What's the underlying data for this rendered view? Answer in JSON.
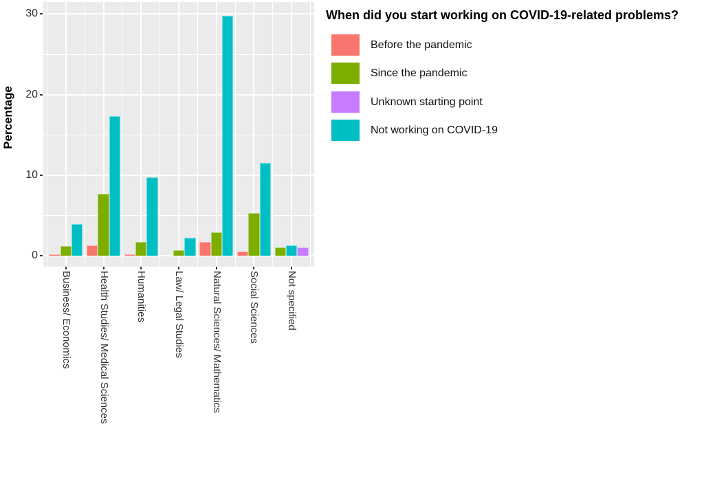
{
  "chart_data": {
    "type": "bar",
    "layout": "grouped-dodged vertical bars, grey panel with white gridlines, legend at right",
    "ylabel": "Percentage",
    "xlabel": "",
    "ylim": [
      0,
      30
    ],
    "yticks": [
      0,
      10,
      20,
      30
    ],
    "grid": "major horizontal at 0/10/20/30, minor at 5/15/25, vertical at category centers",
    "panel_bg": "#EBEBEB",
    "gridline_color": "#FFFFFF",
    "legend_title": "When did you start working on COVID-19-related problems?",
    "legend_position": "right",
    "categories": [
      "Business/ Economics",
      "Health Studies/ Medical Sciences",
      "Humanities",
      "Law/ Legal Studies",
      "Natural Sciences/ Mathematics",
      "Social Sciences",
      "Not specified"
    ],
    "series": [
      {
        "id": "before",
        "label": "Before the pandemic",
        "color": "#F8766D",
        "values": [
          0.2,
          1.3,
          0.2,
          0,
          1.7,
          0.5,
          0
        ]
      },
      {
        "id": "since",
        "label": "Since the pandemic",
        "color": "#7CAE00",
        "values": [
          1.2,
          7.7,
          1.7,
          0.7,
          2.9,
          5.3,
          1.0
        ]
      },
      {
        "id": "unknown",
        "label": "Unknown starting point",
        "color": "#C77CFF",
        "values": [
          0,
          0,
          0,
          0,
          0,
          0,
          1.0
        ]
      },
      {
        "id": "notworking",
        "label": "Not working on COVID-19",
        "color": "#00BFC4",
        "values": [
          3.9,
          17.3,
          9.7,
          2.2,
          29.8,
          11.5,
          1.3
        ]
      }
    ],
    "bar_order": [
      [
        "before",
        "since",
        "notworking"
      ],
      [
        "before",
        "since",
        "notworking"
      ],
      [
        "before",
        "since",
        "notworking"
      ],
      [
        "before",
        "since",
        "notworking"
      ],
      [
        "before",
        "since",
        "notworking"
      ],
      [
        "before",
        "since",
        "notworking"
      ],
      [
        "since",
        "notworking",
        "unknown"
      ]
    ]
  }
}
